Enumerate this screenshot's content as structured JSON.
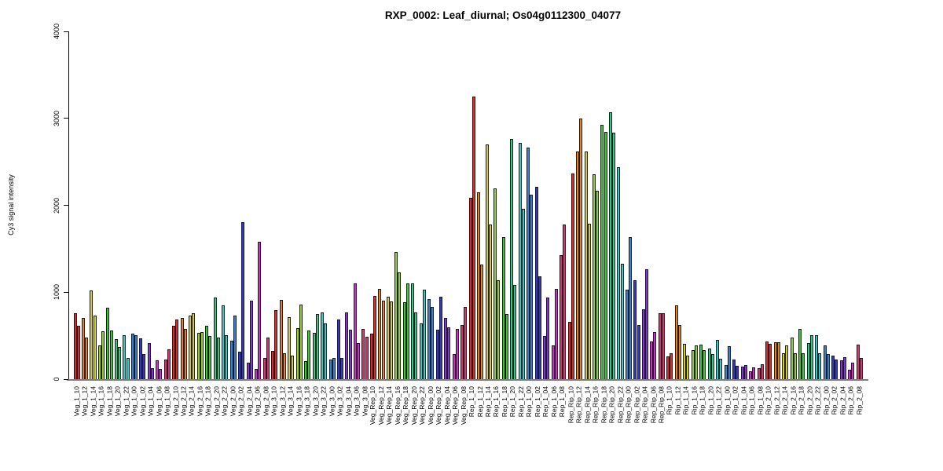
{
  "chart_data": {
    "type": "bar",
    "title": "RXP_0002: Leaf_diurnal; Os04g0112300_04077",
    "ylabel": "Cy3 signal intensity",
    "ylim": [
      0,
      4000
    ],
    "yticks": [
      "0",
      "1000",
      "2000",
      "3000",
      "4000"
    ],
    "grid": false,
    "legend": "none",
    "bars_per_sample": 2,
    "groups": [
      "Veg_1",
      "Veg_2",
      "Veg_3",
      "Veg_Rep",
      "Rep_1",
      "Rep_Rip",
      "Rip_1",
      "Rip_2"
    ],
    "timepoints": [
      "10",
      "12",
      "14",
      "16",
      "18",
      "20",
      "22",
      "00",
      "02",
      "04",
      "06",
      "08"
    ],
    "palette": [
      "#e12828",
      "#e8821e",
      "#d9cf20",
      "#97d121",
      "#3cca33",
      "#2fcd84",
      "#2fcfcb",
      "#3380d6",
      "#3136cf",
      "#8236d8",
      "#d02ed0",
      "#da3372"
    ],
    "samples": [
      {
        "label": "Veg_1_10",
        "color_index": 0,
        "values": [
          760,
          615
        ]
      },
      {
        "label": "Veg_1_12",
        "color_index": 1,
        "values": [
          700,
          480
        ]
      },
      {
        "label": "Veg_1_14",
        "color_index": 2,
        "values": [
          1020,
          730
        ]
      },
      {
        "label": "Veg_1_16",
        "color_index": 3,
        "values": [
          390,
          550
        ]
      },
      {
        "label": "Veg_1_18",
        "color_index": 4,
        "values": [
          820,
          560
        ]
      },
      {
        "label": "Veg_1_20",
        "color_index": 5,
        "values": [
          460,
          370
        ]
      },
      {
        "label": "Veg_1_22",
        "color_index": 6,
        "values": [
          505,
          240
        ]
      },
      {
        "label": "Veg_1_00",
        "color_index": 7,
        "values": [
          520,
          505
        ]
      },
      {
        "label": "Veg_1_02",
        "color_index": 8,
        "values": [
          470,
          285
        ]
      },
      {
        "label": "Veg_1_04",
        "color_index": 9,
        "values": [
          415,
          130
        ]
      },
      {
        "label": "Veg_1_06",
        "color_index": 10,
        "values": [
          215,
          120
        ]
      },
      {
        "label": "Veg_1_08",
        "color_index": 11,
        "values": [
          230,
          345
        ]
      },
      {
        "label": "Veg_2_10",
        "color_index": 0,
        "values": [
          610,
          690
        ]
      },
      {
        "label": "Veg_2_12",
        "color_index": 1,
        "values": [
          705,
          580
        ]
      },
      {
        "label": "Veg_2_14",
        "color_index": 2,
        "values": [
          730,
          755
        ]
      },
      {
        "label": "Veg_2_16",
        "color_index": 3,
        "values": [
          530,
          545
        ]
      },
      {
        "label": "Veg_2_18",
        "color_index": 4,
        "values": [
          610,
          495
        ]
      },
      {
        "label": "Veg_2_20",
        "color_index": 5,
        "values": [
          940,
          475
        ]
      },
      {
        "label": "Veg_2_22",
        "color_index": 6,
        "values": [
          850,
          510
        ]
      },
      {
        "label": "Veg_2_00",
        "color_index": 7,
        "values": [
          445,
          735
        ]
      },
      {
        "label": "Veg_2_02",
        "color_index": 8,
        "values": [
          315,
          1810
        ]
      },
      {
        "label": "Veg_2_04",
        "color_index": 9,
        "values": [
          190,
          905
        ]
      },
      {
        "label": "Veg_2_06",
        "color_index": 10,
        "values": [
          115,
          1580
        ]
      },
      {
        "label": "Veg_2_08",
        "color_index": 11,
        "values": [
          245,
          480
        ]
      },
      {
        "label": "Veg_3_10",
        "color_index": 0,
        "values": [
          325,
          795
        ]
      },
      {
        "label": "Veg_3_12",
        "color_index": 1,
        "values": [
          910,
          300
        ]
      },
      {
        "label": "Veg_3_14",
        "color_index": 2,
        "values": [
          715,
          275
        ]
      },
      {
        "label": "Veg_3_16",
        "color_index": 3,
        "values": [
          590,
          855
        ]
      },
      {
        "label": "Veg_3_18",
        "color_index": 4,
        "values": [
          210,
          560
        ]
      },
      {
        "label": "Veg_3_20",
        "color_index": 5,
        "values": [
          530,
          750
        ]
      },
      {
        "label": "Veg_3_22",
        "color_index": 6,
        "values": [
          770,
          645
        ]
      },
      {
        "label": "Veg_3_00",
        "color_index": 7,
        "values": [
          225,
          245
        ]
      },
      {
        "label": "Veg_3_02",
        "color_index": 8,
        "values": [
          690,
          240
        ]
      },
      {
        "label": "Veg_3_04",
        "color_index": 9,
        "values": [
          765,
          570
        ]
      },
      {
        "label": "Veg_3_06",
        "color_index": 10,
        "values": [
          1100,
          415
        ]
      },
      {
        "label": "Veg_3_08",
        "color_index": 11,
        "values": [
          580,
          490
        ]
      },
      {
        "label": "Veg_Rep_10",
        "color_index": 0,
        "values": [
          525,
          955
        ]
      },
      {
        "label": "Veg_Rep_12",
        "color_index": 1,
        "values": [
          1035,
          900
        ]
      },
      {
        "label": "Veg_Rep_14",
        "color_index": 2,
        "values": [
          945,
          890
        ]
      },
      {
        "label": "Veg_Rep_16",
        "color_index": 3,
        "values": [
          1460,
          1230
        ]
      },
      {
        "label": "Veg_Rep_18",
        "color_index": 4,
        "values": [
          885,
          1100
        ]
      },
      {
        "label": "Veg_Rep_20",
        "color_index": 5,
        "values": [
          1100,
          765
        ]
      },
      {
        "label": "Veg_Rep_22",
        "color_index": 6,
        "values": [
          640,
          1030
        ]
      },
      {
        "label": "Veg_Rep_00",
        "color_index": 7,
        "values": [
          920,
          830
        ]
      },
      {
        "label": "Veg_Rep_02",
        "color_index": 8,
        "values": [
          570,
          950
        ]
      },
      {
        "label": "Veg_Rep_04",
        "color_index": 9,
        "values": [
          700,
          600
        ]
      },
      {
        "label": "Veg_Rep_06",
        "color_index": 10,
        "values": [
          290,
          580
        ]
      },
      {
        "label": "Veg_Rep_08",
        "color_index": 11,
        "values": [
          625,
          835
        ]
      },
      {
        "label": "Rep_1_10",
        "color_index": 0,
        "values": [
          2090,
          3250
        ]
      },
      {
        "label": "Rep_1_12",
        "color_index": 1,
        "values": [
          2145,
          1320
        ]
      },
      {
        "label": "Rep_1_14",
        "color_index": 2,
        "values": [
          2700,
          1775
        ]
      },
      {
        "label": "Rep_1_16",
        "color_index": 3,
        "values": [
          2190,
          1135
        ]
      },
      {
        "label": "Rep_1_18",
        "color_index": 4,
        "values": [
          1630,
          745
        ]
      },
      {
        "label": "Rep_1_20",
        "color_index": 5,
        "values": [
          2760,
          1085
        ]
      },
      {
        "label": "Rep_1_22",
        "color_index": 6,
        "values": [
          2720,
          1955
        ]
      },
      {
        "label": "Rep_1_00",
        "color_index": 7,
        "values": [
          2660,
          2120
        ]
      },
      {
        "label": "Rep_1_02",
        "color_index": 8,
        "values": [
          2210,
          1180
        ]
      },
      {
        "label": "Rep_1_04",
        "color_index": 9,
        "values": [
          495,
          940
        ]
      },
      {
        "label": "Rep_1_06",
        "color_index": 10,
        "values": [
          390,
          1040
        ]
      },
      {
        "label": "Rep_1_08",
        "color_index": 11,
        "values": [
          1425,
          1775
        ]
      },
      {
        "label": "Rep_Rip_10",
        "color_index": 0,
        "values": [
          660,
          2370
        ]
      },
      {
        "label": "Rep_Rip_12",
        "color_index": 1,
        "values": [
          2620,
          3000
        ]
      },
      {
        "label": "Rep_Rip_14",
        "color_index": 2,
        "values": [
          2620,
          1790
        ]
      },
      {
        "label": "Rep_Rip_16",
        "color_index": 3,
        "values": [
          2360,
          2170
        ]
      },
      {
        "label": "Rep_Rip_18",
        "color_index": 4,
        "values": [
          2930,
          2845
        ]
      },
      {
        "label": "Rep_Rip_20",
        "color_index": 5,
        "values": [
          3070,
          2835
        ]
      },
      {
        "label": "Rep_Rip_22",
        "color_index": 6,
        "values": [
          2440,
          1330
        ]
      },
      {
        "label": "Rep_Rip_00",
        "color_index": 7,
        "values": [
          1030,
          1630
        ]
      },
      {
        "label": "Rep_Rip_02",
        "color_index": 8,
        "values": [
          1140,
          620
        ]
      },
      {
        "label": "Rep_Rip_04",
        "color_index": 9,
        "values": [
          800,
          1260
        ]
      },
      {
        "label": "Rep_Rip_06",
        "color_index": 10,
        "values": [
          430,
          540
        ]
      },
      {
        "label": "Rep_Rip_08",
        "color_index": 11,
        "values": [
          755,
          755
        ]
      },
      {
        "label": "Rip_1_10",
        "color_index": 0,
        "values": [
          265,
          300
        ]
      },
      {
        "label": "Rip_1_12",
        "color_index": 1,
        "values": [
          850,
          625
        ]
      },
      {
        "label": "Rip_1_14",
        "color_index": 2,
        "values": [
          410,
          270
        ]
      },
      {
        "label": "Rip_1_16",
        "color_index": 3,
        "values": [
          335,
          390
        ]
      },
      {
        "label": "Rip_1_18",
        "color_index": 4,
        "values": [
          395,
          330
        ]
      },
      {
        "label": "Rip_1_20",
        "color_index": 5,
        "values": [
          350,
          290
        ]
      },
      {
        "label": "Rip_1_22",
        "color_index": 6,
        "values": [
          450,
          235
        ]
      },
      {
        "label": "Rip_1_00",
        "color_index": 7,
        "values": [
          165,
          380
        ]
      },
      {
        "label": "Rip_1_02",
        "color_index": 8,
        "values": [
          225,
          150
        ]
      },
      {
        "label": "Rip_1_04",
        "color_index": 9,
        "values": [
          140,
          165
        ]
      },
      {
        "label": "Rip_1_06",
        "color_index": 10,
        "values": [
          90,
          135
        ]
      },
      {
        "label": "Rip_1_08",
        "color_index": 11,
        "values": [
          130,
          170
        ]
      },
      {
        "label": "Rip_2_10",
        "color_index": 0,
        "values": [
          430,
          410
        ]
      },
      {
        "label": "Rip_2_12",
        "color_index": 1,
        "values": [
          420,
          420
        ]
      },
      {
        "label": "Rip_2_14",
        "color_index": 2,
        "values": [
          300,
          390
        ]
      },
      {
        "label": "Rip_2_16",
        "color_index": 3,
        "values": [
          480,
          300
        ]
      },
      {
        "label": "Rip_2_18",
        "color_index": 4,
        "values": [
          575,
          300
        ]
      },
      {
        "label": "Rip_2_20",
        "color_index": 5,
        "values": [
          415,
          505
        ]
      },
      {
        "label": "Rip_2_22",
        "color_index": 6,
        "values": [
          510,
          300
        ]
      },
      {
        "label": "Rip_2_00",
        "color_index": 7,
        "values": [
          385,
          285
        ]
      },
      {
        "label": "Rip_2_02",
        "color_index": 8,
        "values": [
          270,
          230
        ]
      },
      {
        "label": "Rip_2_04",
        "color_index": 9,
        "values": [
          215,
          255
        ]
      },
      {
        "label": "Rip_2_06",
        "color_index": 10,
        "values": [
          110,
          190
        ]
      },
      {
        "label": "Rip_2_08",
        "color_index": 11,
        "values": [
          400,
          245
        ]
      }
    ]
  }
}
